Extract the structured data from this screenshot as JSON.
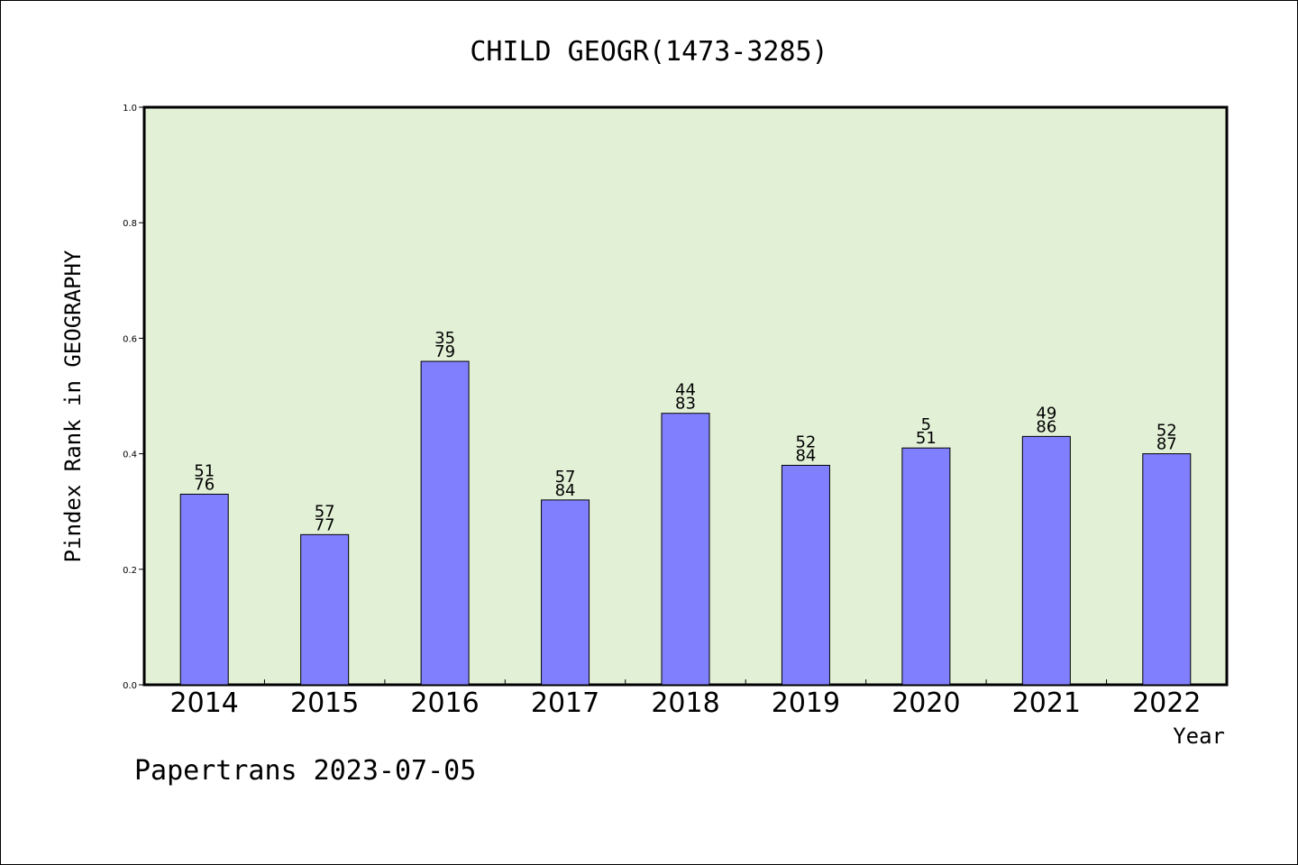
{
  "chart_data": {
    "type": "bar",
    "title": "CHILD GEOGR(1473-3285)",
    "xlabel": "Year",
    "ylabel": "Pindex Rank in GEOGRAPHY",
    "categories": [
      "2014",
      "2015",
      "2016",
      "2017",
      "2018",
      "2019",
      "2020",
      "2021",
      "2022"
    ],
    "values": [
      0.33,
      0.26,
      0.56,
      0.32,
      0.47,
      0.38,
      0.41,
      0.43,
      0.4
    ],
    "labels_top": [
      "51",
      "57",
      "35",
      "57",
      "44",
      "52",
      "5",
      "49",
      "52"
    ],
    "labels_bottom": [
      "76",
      "77",
      "79",
      "84",
      "83",
      "84",
      "51",
      "86",
      "87"
    ],
    "ylim": [
      0.0,
      1.0
    ],
    "yticks": [
      "0.0",
      "0.2",
      "0.4",
      "0.6",
      "0.8",
      "1.0"
    ],
    "grid": false,
    "colors": {
      "bar": "#8080ff",
      "plot_bg": "#e2f0d6",
      "border": "#000000"
    }
  },
  "footer": "Papertrans 2023-07-05"
}
